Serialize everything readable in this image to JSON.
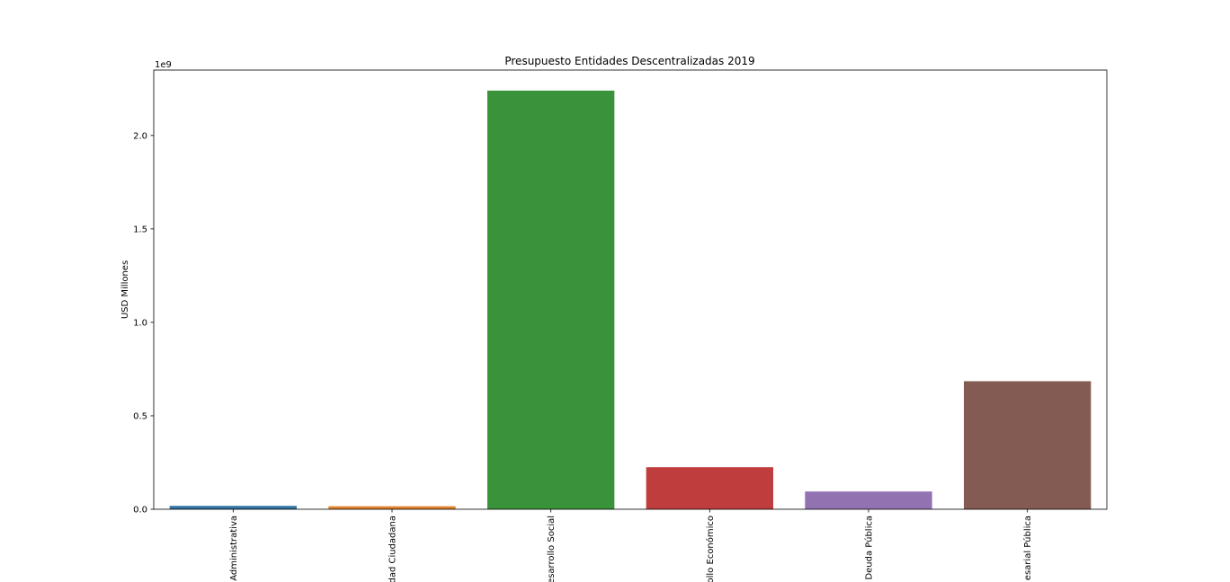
{
  "chart_data": {
    "type": "bar",
    "title": "Presupuesto Entidades Descentralizadas 2019",
    "xlabel": "",
    "ylabel": "USD Millones",
    "y_offset_label": "1e9",
    "y_scale": 1000000000,
    "ylim": [
      0,
      2350000000
    ],
    "yticks": [
      0,
      500000000,
      1000000000,
      1500000000,
      2000000000
    ],
    "ytick_labels": [
      "0.0",
      "0.5",
      "1.0",
      "1.5",
      "2.0"
    ],
    "grid": false,
    "legend": "none",
    "categories": [
      "Administrativa",
      "dad Ciudadana",
      "esarrollo Social",
      "ollo Económico",
      "Deuda Pública",
      "esarial Pública"
    ],
    "values": [
      18000000,
      16000000,
      2240000000,
      225000000,
      95000000,
      685000000
    ],
    "colors": [
      "#3274a1",
      "#e1812c",
      "#3a923a",
      "#c03d3e",
      "#9372b2",
      "#845b53"
    ]
  }
}
